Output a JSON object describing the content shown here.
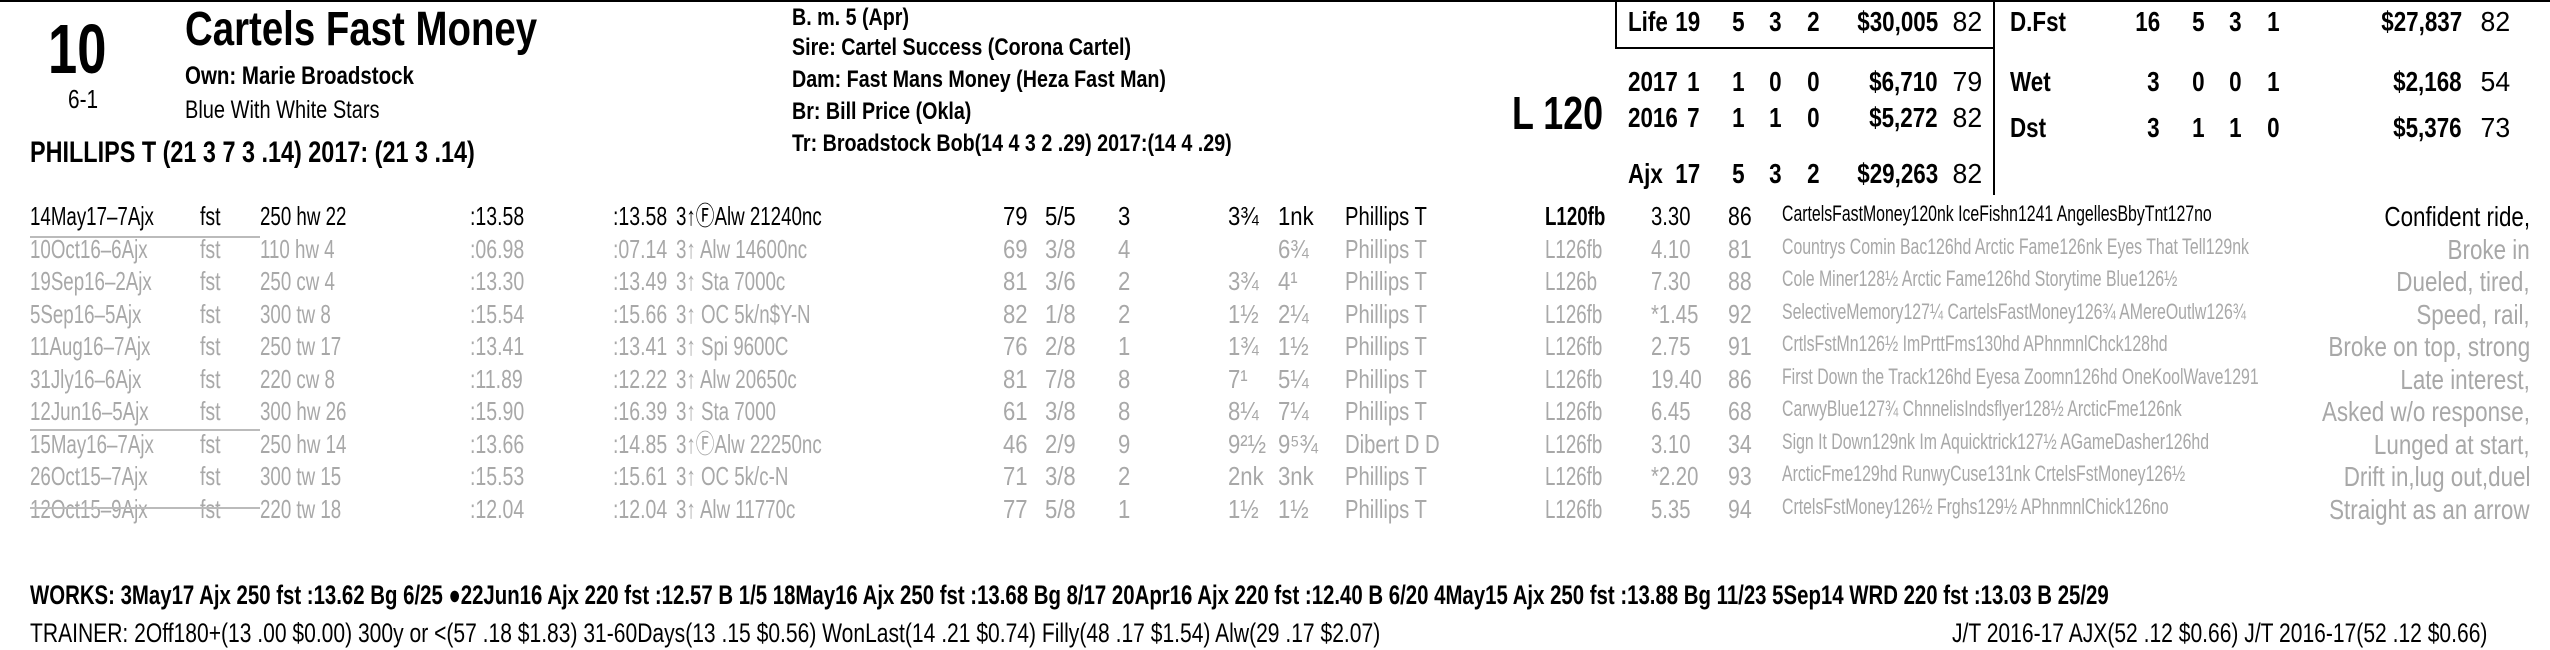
{
  "header": {
    "number": "10",
    "odds": "6-1",
    "name": "Cartels Fast Money",
    "owner": "Own: Marie Broadstock",
    "silks": "Blue With White Stars",
    "jockey": "PHILLIPS T (21 3 7 3 .14) 2017: (21 3 .14)",
    "sex_age": "B. m. 5 (Apr)",
    "sire": "Sire: Cartel Success (Corona Cartel)",
    "dam": "Dam: Fast Mans Money (Heza Fast Man)",
    "breeder": "Br:   Bill Price (Okla)",
    "trainer": "Tr:    Broadstock Bob(14 4 3 2 .29)  2017:(14 4 .29)",
    "weight": "L 120"
  },
  "stats_left": [
    {
      "label": "Life",
      "st": "19",
      "w": "5",
      "p": "3",
      "s": "2",
      "earn": "$30,005",
      "spd": "82"
    },
    {
      "label": "2017",
      "st": "1",
      "w": "1",
      "p": "0",
      "s": "0",
      "earn": "$6,710",
      "spd": "79"
    },
    {
      "label": "2016",
      "st": "7",
      "w": "1",
      "p": "1",
      "s": "0",
      "earn": "$5,272",
      "spd": "82"
    },
    {
      "label": "Ajx",
      "st": "17",
      "w": "5",
      "p": "3",
      "s": "2",
      "earn": "$29,263",
      "spd": "82"
    }
  ],
  "stats_right": [
    {
      "label": "D.Fst",
      "st": "16",
      "w": "5",
      "p": "3",
      "s": "1",
      "earn": "$27,837",
      "spd": "82"
    },
    {
      "label": "Wet",
      "st": "3",
      "w": "0",
      "p": "0",
      "s": "1",
      "earn": "$2,168",
      "spd": "54"
    },
    {
      "label": "Dst",
      "st": "3",
      "w": "1",
      "p": "1",
      "s": "0",
      "earn": "$5,376",
      "spd": "73"
    }
  ],
  "races": [
    {
      "date": "14May17–7Ajx",
      "trk": "fst",
      "dist": "250 hw 22",
      "f1": ":13.58",
      "f2": ":13.58",
      "cls": "3↑ⒻAlw 21240nc",
      "spd": "79",
      "pp": "5/5",
      "st": "3",
      "c1": "3¾",
      "fin": "1nk",
      "jock": "Phillips T",
      "wt": "L120fb",
      "odds": "3.30",
      "sp2": "86",
      "comp": "CartelsFastMoney120nk IceFishn1241 AngellesBbyTnt127no",
      "com": "Confident ride,"
    },
    {
      "date": "10Oct16–6Ajx",
      "trk": "fst",
      "dist": "110 hw 4",
      "f1": ":06.98",
      "f2": ":07.14",
      "cls": "3↑ Alw 14600nc",
      "spd": "69",
      "pp": "3/8",
      "st": "4",
      "c1": "",
      "fin": "6¾",
      "jock": "Phillips T",
      "wt": "L126fb",
      "odds": "4.10",
      "sp2": "81",
      "comp": "Countrys Comin Bac126hd Arctic Fame126nk Eyes That Tell129nk",
      "com": "Broke in"
    },
    {
      "date": "19Sep16–2Ajx",
      "trk": "fst",
      "dist": "250 cw 4",
      "f1": ":13.30",
      "f2": ":13.49",
      "cls": "3↑ Sta 7000c",
      "spd": "81",
      "pp": "3/6",
      "st": "2",
      "c1": "3¾",
      "fin": "4¹",
      "jock": "Phillips T",
      "wt": "L126b",
      "odds": "7.30",
      "sp2": "88",
      "comp": "Cole Miner128½ Arctic Fame126hd Storytime Blue126½",
      "com": "Dueled, tired,"
    },
    {
      "date": "5Sep16–5Ajx",
      "trk": "fst",
      "dist": "300 tw 8",
      "f1": ":15.54",
      "f2": ":15.66",
      "cls": "3↑ OC 5k/n$Y-N",
      "spd": "82",
      "pp": "1/8",
      "st": "2",
      "c1": "1½",
      "fin": "2¼",
      "jock": "Phillips T",
      "wt": "L126fb",
      "odds": "*1.45",
      "sp2": "92",
      "comp": "SelectiveMemory127¼ CartelsFastMoney126¾ AMereOutlw126¾",
      "com": "Speed, rail,"
    },
    {
      "date": "11Aug16–7Ajx",
      "trk": "fst",
      "dist": "250 tw 17",
      "f1": ":13.41",
      "f2": ":13.41",
      "cls": "3↑ Spi 9600C",
      "spd": "76",
      "pp": "2/8",
      "st": "1",
      "c1": "1¾",
      "fin": "1½",
      "jock": "Phillips T",
      "wt": "L126fb",
      "odds": "2.75",
      "sp2": "91",
      "comp": "CrtlsFstMn126½ ImPrttFms130hd APhnmnlChck128hd",
      "com": "Broke on top, strong"
    },
    {
      "date": "31Jly16–6Ajx",
      "trk": "fst",
      "dist": "220 cw 8",
      "f1": ":11.89",
      "f2": ":12.22",
      "cls": "3↑ Alw 20650c",
      "spd": "81",
      "pp": "7/8",
      "st": "8",
      "c1": "7¹",
      "fin": "5¼",
      "jock": "Phillips T",
      "wt": "L126fb",
      "odds": "19.40",
      "sp2": "86",
      "comp": "First Down the Track126hd Eyesa Zoomn126hd OneKoolWave1291",
      "com": "Late interest,"
    },
    {
      "date": "12Jun16–5Ajx",
      "trk": "fst",
      "dist": "300 hw 26",
      "f1": ":15.90",
      "f2": ":16.39",
      "cls": "3↑ Sta 7000",
      "spd": "61",
      "pp": "3/8",
      "st": "8",
      "c1": "8¼",
      "fin": "7¼",
      "jock": "Phillips T",
      "wt": "L126fb",
      "odds": "6.45",
      "sp2": "68",
      "comp": "CarwyBlue127¾ ChnnelisIndsflyer128½ ArcticFme126nk",
      "com": "Asked w/o response,"
    },
    {
      "date": "15May16–7Ajx",
      "trk": "fst",
      "dist": "250 hw 14",
      "f1": ":13.66",
      "f2": ":14.85",
      "cls": "3↑ⒻAlw 22250nc",
      "spd": "46",
      "pp": "2/9",
      "st": "9",
      "c1": "9²½",
      "fin": "9⁵¾",
      "jock": "Dibert D D",
      "wt": "L126fb",
      "odds": "3.10",
      "sp2": "34",
      "comp": "Sign It Down129nk Im Aquicktrick127½ AGameDasher126hd",
      "com": "Lunged at start,"
    },
    {
      "date": "26Oct15–7Ajx",
      "trk": "fst",
      "dist": "300 tw 15",
      "f1": ":15.53",
      "f2": ":15.61",
      "cls": "3↑ OC 5k/c-N",
      "spd": "71",
      "pp": "3/8",
      "st": "2",
      "c1": "2nk",
      "fin": "3nk",
      "jock": "Phillips T",
      "wt": "L126fb",
      "odds": "*2.20",
      "sp2": "93",
      "comp": "ArcticFme129hd RunwyCuse131nk CrtelsFstMoney126½",
      "com": "Drift in,lug out,duel"
    },
    {
      "date": "12Oct15–9Ajx",
      "trk": "fst",
      "dist": "220 tw 18",
      "f1": ":12.04",
      "f2": ":12.04",
      "cls": "3↑ Alw 11770c",
      "spd": "77",
      "pp": "5/8",
      "st": "1",
      "c1": "1½",
      "fin": "1½",
      "jock": "Phillips T",
      "wt": "L126fb",
      "odds": "5.35",
      "sp2": "94",
      "comp": "CrtelsFstMoney126½ Frghs129½ APhnmnlChick126no",
      "com": "Straight as an arrow"
    }
  ],
  "works": "WORKS:   3May17 Ajx 250 fst  :13.62 Bg 6/25   ●22Jun16 Ajx 220 fst  :12.57 B  1/5   18May16 Ajx 250 fst  :13.68 Bg 8/17   20Apr16 Ajx 220 fst  :12.40 B 6/20   4May15 Ajx 250 fst  :13.88 Bg 11/23   5Sep14 WRD 220 fst  :13.03 B 25/29",
  "trainer_line": "TRAINER: 2Off180+(13 .00 $0.00) 300y or <(57 .18 $1.83) 31-60Days(13 .15 $0.56) WonLast(14 .21 $0.74) Filly(48 .17 $1.54) Alw(29 .17 $2.07)",
  "jt_line": "J/T 2016-17 AJX(52 .12 $0.66)  J/T 2016-17(52 .12 $0.66)"
}
